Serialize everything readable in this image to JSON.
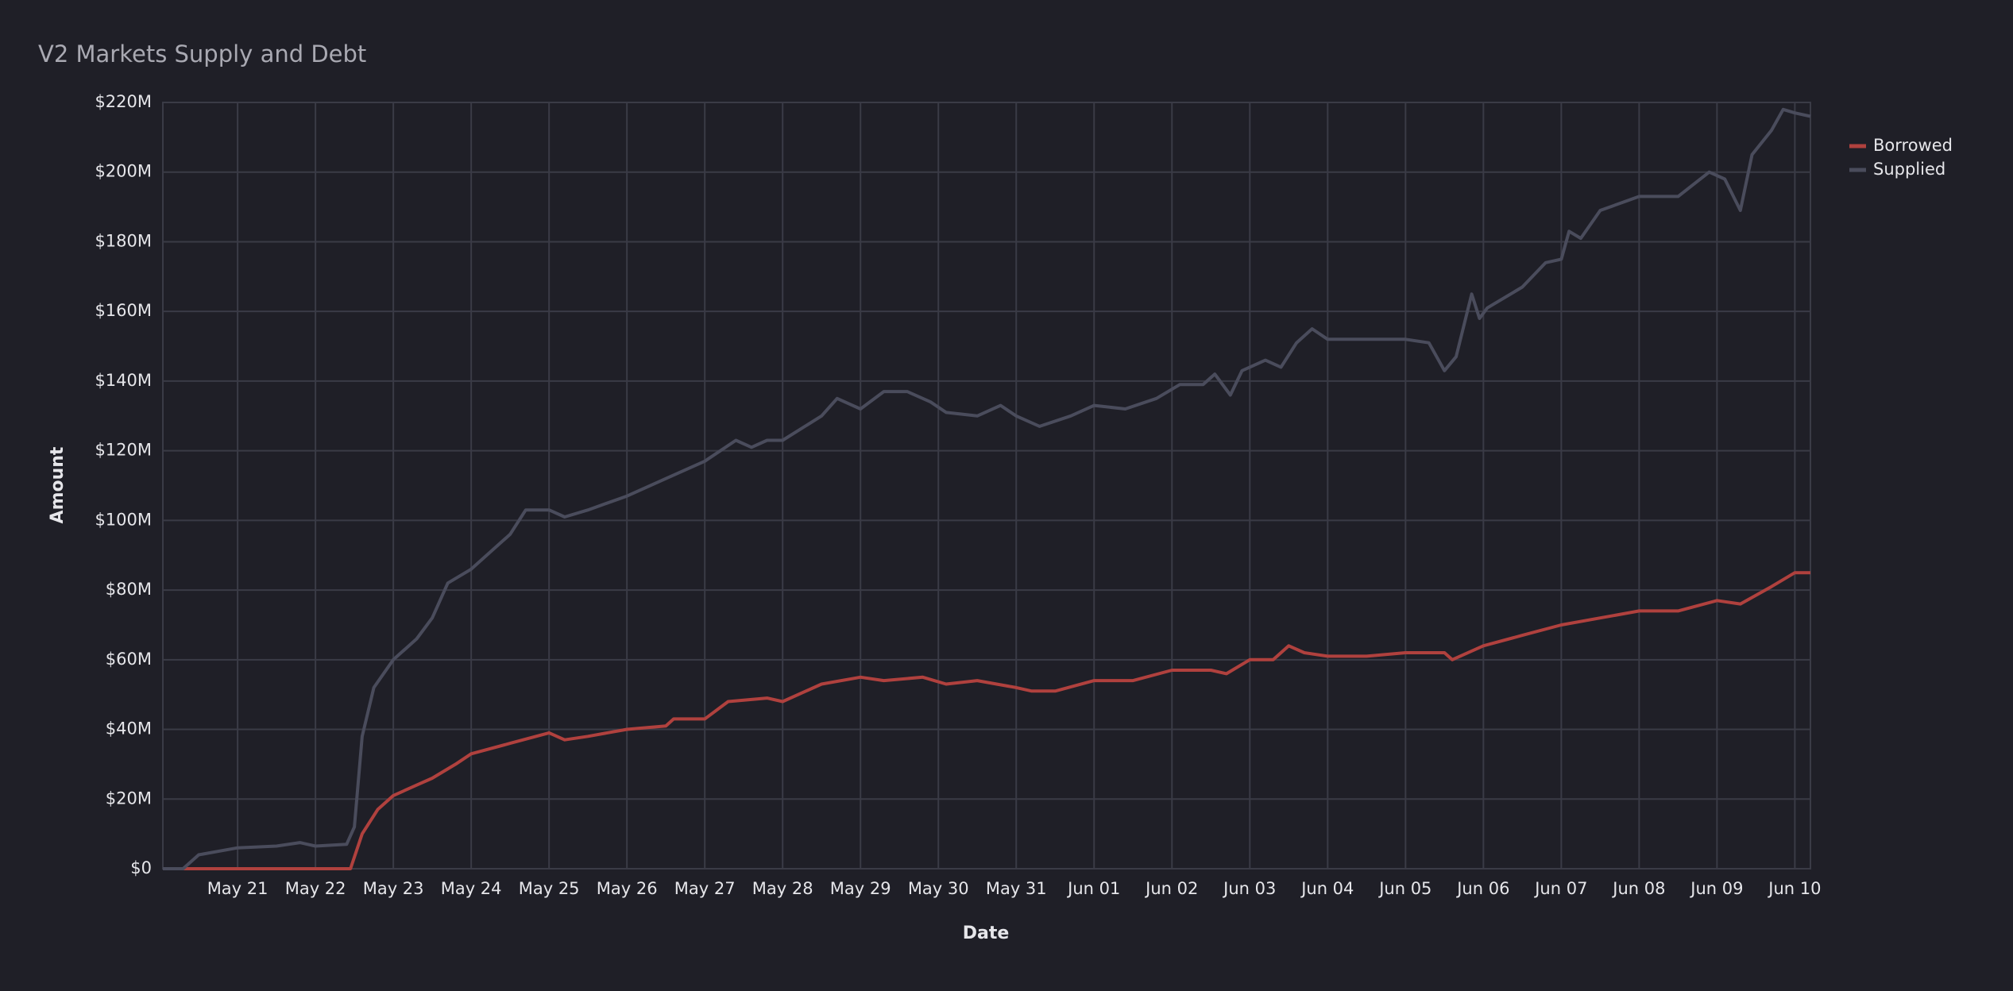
{
  "chart_data": {
    "type": "line",
    "title": "V2 Markets Supply and Debt",
    "x_label": "Date",
    "y_label": "Amount",
    "xlim": [
      20.04,
      41.2
    ],
    "ylim": [
      0,
      220000000.0
    ],
    "grid": true,
    "legend": "upper right",
    "xticks": [
      {
        "value": 21,
        "label": "May 21"
      },
      {
        "value": 22,
        "label": "May 22"
      },
      {
        "value": 23,
        "label": "May 23"
      },
      {
        "value": 24,
        "label": "May 24"
      },
      {
        "value": 25,
        "label": "May 25"
      },
      {
        "value": 26,
        "label": "May 26"
      },
      {
        "value": 27,
        "label": "May 27"
      },
      {
        "value": 28,
        "label": "May 28"
      },
      {
        "value": 29,
        "label": "May 29"
      },
      {
        "value": 30,
        "label": "May 30"
      },
      {
        "value": 31,
        "label": "May 31"
      },
      {
        "value": 32,
        "label": "Jun 01"
      },
      {
        "value": 33,
        "label": "Jun 02"
      },
      {
        "value": 34,
        "label": "Jun 03"
      },
      {
        "value": 35,
        "label": "Jun 04"
      },
      {
        "value": 36,
        "label": "Jun 05"
      },
      {
        "value": 37,
        "label": "Jun 06"
      },
      {
        "value": 38,
        "label": "Jun 07"
      },
      {
        "value": 39,
        "label": "Jun 08"
      },
      {
        "value": 40,
        "label": "Jun 09"
      },
      {
        "value": 41,
        "label": "Jun 10"
      }
    ],
    "yticks": [
      {
        "value": 0,
        "label": "$0"
      },
      {
        "value": 20000000.0,
        "label": "$20M"
      },
      {
        "value": 40000000.0,
        "label": "$40M"
      },
      {
        "value": 60000000.0,
        "label": "$60M"
      },
      {
        "value": 80000000.0,
        "label": "$80M"
      },
      {
        "value": 100000000.0,
        "label": "$100M"
      },
      {
        "value": 120000000.0,
        "label": "$120M"
      },
      {
        "value": 140000000.0,
        "label": "$140M"
      },
      {
        "value": 160000000.0,
        "label": "$160M"
      },
      {
        "value": 180000000.0,
        "label": "$180M"
      },
      {
        "value": 200000000.0,
        "label": "$200M"
      },
      {
        "value": 220000000.0,
        "label": "$220M"
      }
    ],
    "series": [
      {
        "name": "Borrowed",
        "color": "#b0413e",
        "x": [
          20.04,
          22.45,
          22.6,
          22.8,
          23,
          23.3,
          23.5,
          23.8,
          24,
          24.5,
          25,
          25.2,
          25.5,
          26,
          26.5,
          26.6,
          27,
          27.3,
          27.8,
          28,
          28.5,
          29,
          29.3,
          29.8,
          30.1,
          30.5,
          31,
          31.2,
          31.5,
          32,
          32.5,
          33,
          33.5,
          33.7,
          34,
          34.3,
          34.5,
          34.7,
          35,
          35.5,
          36,
          36.5,
          36.6,
          37,
          37.5,
          38,
          38.5,
          39,
          39.5,
          40,
          40.3,
          40.7,
          41,
          41.2
        ],
        "values": [
          0,
          0,
          10000000.0,
          17000000.0,
          21000000.0,
          24000000.0,
          26000000.0,
          30000000.0,
          33000000.0,
          36000000.0,
          39000000.0,
          37000000.0,
          38000000.0,
          40000000.0,
          41000000.0,
          43000000.0,
          43000000.0,
          48000000.0,
          49000000.0,
          48000000.0,
          53000000.0,
          55000000.0,
          54000000.0,
          55000000.0,
          53000000.0,
          54000000.0,
          52000000.0,
          51000000.0,
          51000000.0,
          54000000.0,
          54000000.0,
          57000000.0,
          57000000.0,
          56000000.0,
          60000000.0,
          60000000.0,
          64000000.0,
          62000000.0,
          61000000.0,
          61000000.0,
          62000000.0,
          62000000.0,
          60000000.0,
          64000000.0,
          67000000.0,
          70000000.0,
          72000000.0,
          74000000.0,
          74000000.0,
          77000000.0,
          76000000.0,
          81000000.0,
          85000000.0,
          85000000.0
        ]
      },
      {
        "name": "Supplied",
        "color": "#4a4c5c",
        "x": [
          20.04,
          20.3,
          20.5,
          21,
          21.5,
          21.8,
          22,
          22.4,
          22.5,
          22.6,
          22.75,
          23,
          23.3,
          23.5,
          23.7,
          24,
          24.5,
          24.7,
          25,
          25.2,
          25.5,
          26,
          26.5,
          27,
          27.4,
          27.6,
          27.8,
          28,
          28.5,
          28.7,
          29,
          29.3,
          29.6,
          29.9,
          30.1,
          30.5,
          30.8,
          31,
          31.3,
          31.7,
          32,
          32.4,
          32.8,
          33.1,
          33.4,
          33.55,
          33.75,
          33.9,
          34.2,
          34.4,
          34.6,
          34.8,
          35,
          35.5,
          36,
          36.3,
          36.5,
          36.65,
          36.85,
          36.95,
          37.05,
          37.5,
          37.8,
          38,
          38.1,
          38.25,
          38.5,
          39,
          39.5,
          39.9,
          40.1,
          40.3,
          40.45,
          40.7,
          40.85,
          41,
          41.2
        ],
        "values": [
          0,
          0,
          4000000.0,
          6000000.0,
          6500000.0,
          7500000.0,
          6500000.0,
          7000000.0,
          12000000.0,
          38000000.0,
          52000000.0,
          60000000.0,
          66000000.0,
          72000000.0,
          82000000.0,
          86000000.0,
          96000000.0,
          103000000.0,
          103000000.0,
          101000000.0,
          103000000.0,
          107000000.0,
          112000000.0,
          117000000.0,
          123000000.0,
          121000000.0,
          123000000.0,
          123000000.0,
          130000000.0,
          135000000.0,
          132000000.0,
          137000000.0,
          137000000.0,
          134000000.0,
          131000000.0,
          130000000.0,
          133000000.0,
          130000000.0,
          127000000.0,
          130000000.0,
          133000000.0,
          132000000.0,
          135000000.0,
          139000000.0,
          139000000.0,
          142000000.0,
          136000000.0,
          143000000.0,
          146000000.0,
          144000000.0,
          151000000.0,
          155000000.0,
          152000000.0,
          152000000.0,
          152000000.0,
          151000000.0,
          143000000.0,
          147000000.0,
          165000000.0,
          158000000.0,
          161000000.0,
          167000000.0,
          174000000.0,
          175000000.0,
          183000000.0,
          181000000.0,
          189000000.0,
          193000000.0,
          193000000.0,
          200000000.0,
          198000000.0,
          189000000.0,
          205000000.0,
          212000000.0,
          218000000.0,
          217000000.0,
          216000000.0
        ]
      }
    ]
  }
}
